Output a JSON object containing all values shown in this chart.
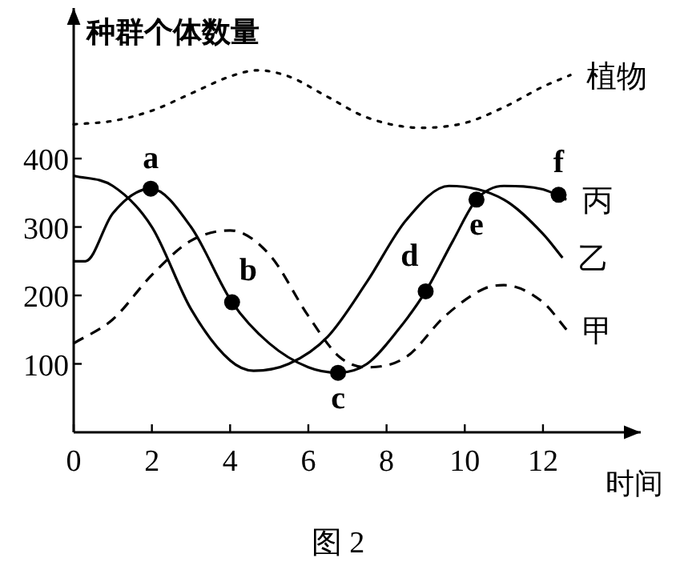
{
  "chart_data": {
    "type": "line",
    "xlabel": "时间",
    "ylabel": "种群个体数量",
    "xlim": [
      0,
      14.5
    ],
    "ylim": [
      0,
      620
    ],
    "xticks": [
      0,
      2,
      4,
      6,
      8,
      10,
      12
    ],
    "yticks": [
      100,
      200,
      300,
      400
    ],
    "grid": false,
    "series": [
      {
        "name": "植物",
        "color": "#000000",
        "line_style": "dotted",
        "x": [
          0,
          1,
          2,
          3,
          4,
          4.7,
          5.5,
          6.5,
          7.5,
          8.9,
          10,
          11,
          12,
          12.7
        ],
        "values": [
          450,
          455,
          470,
          495,
          520,
          529,
          520,
          490,
          460,
          445,
          452,
          475,
          505,
          522
        ]
      },
      {
        "name": "丙",
        "color": "#000000",
        "line_style": "solid",
        "x": [
          0,
          0.3,
          1,
          1.97,
          3,
          4.05,
          5,
          6,
          6.76,
          7.5,
          8.3,
          9,
          9.7,
          10.3,
          11,
          12,
          12.6
        ],
        "values": [
          250,
          250,
          320,
          356,
          300,
          190,
          130,
          95,
          87,
          100,
          150,
          206,
          280,
          340,
          360,
          355,
          340
        ]
      },
      {
        "name": "乙",
        "color": "#000000",
        "line_style": "solid",
        "x": [
          0,
          1,
          2,
          3,
          4,
          4.6,
          5.5,
          6.5,
          7.5,
          8.5,
          9.6,
          11,
          12,
          12.5
        ],
        "values": [
          375,
          360,
          300,
          180,
          105,
          90,
          100,
          140,
          220,
          310,
          360,
          340,
          290,
          255
        ]
      },
      {
        "name": "甲",
        "color": "#000000",
        "line_style": "dashed",
        "x": [
          0,
          1,
          2,
          3,
          4,
          5,
          6,
          6.8,
          7.5,
          8.5,
          9.5,
          10.5,
          11,
          12,
          12.6
        ],
        "values": [
          130,
          165,
          230,
          280,
          295,
          260,
          170,
          110,
          95,
          110,
          170,
          210,
          215,
          190,
          150
        ]
      },
      {
        "type": "scatter",
        "color": "#000000",
        "marker": "circle",
        "x": [
          1.97,
          4.05,
          6.76,
          9.0,
          10.3,
          12.4
        ],
        "values": [
          356,
          190,
          87,
          206,
          340,
          347
        ]
      }
    ],
    "annotations": [
      {
        "text": "a",
        "x": 1.97,
        "y": 356
      },
      {
        "text": "b",
        "x": 4.05,
        "y": 190
      },
      {
        "text": "c",
        "x": 6.76,
        "y": 87
      },
      {
        "text": "d",
        "x": 9.0,
        "y": 206
      },
      {
        "text": "e",
        "x": 10.3,
        "y": 340
      },
      {
        "text": "f",
        "x": 12.4,
        "y": 347
      },
      "图 2"
    ]
  }
}
